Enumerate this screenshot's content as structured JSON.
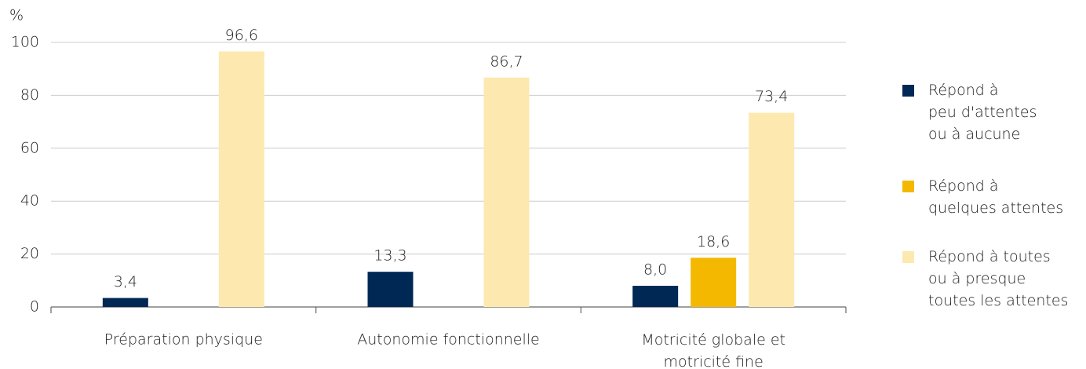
{
  "chart_data": {
    "type": "bar",
    "y_axis_label": "%",
    "categories": [
      "Préparation physique",
      "Autonomie fonctionnelle",
      "Motricité globale et\nmotricité fine"
    ],
    "series": [
      {
        "name": "Répond à\npeu d'attentes\nou à aucune",
        "color": "#002855",
        "values": [
          3.4,
          13.3,
          8.0
        ],
        "value_labels": [
          "3,4",
          "13,3",
          "8,0"
        ]
      },
      {
        "name": "Répond à\nquelques attentes",
        "color": "#f5b800",
        "values": [
          null,
          null,
          18.6
        ],
        "value_labels": [
          null,
          null,
          "18,6"
        ]
      },
      {
        "name": "Répond à toutes\nou à presque\ntoutes les attentes",
        "color": "#fde9b0",
        "values": [
          96.6,
          86.7,
          73.4
        ],
        "value_labels": [
          "96,6",
          "86,7",
          "73,4"
        ]
      }
    ],
    "ylim": [
      0,
      100
    ],
    "yticks": [
      0,
      20,
      40,
      60,
      80,
      100
    ],
    "grid": true,
    "legend": "right"
  }
}
